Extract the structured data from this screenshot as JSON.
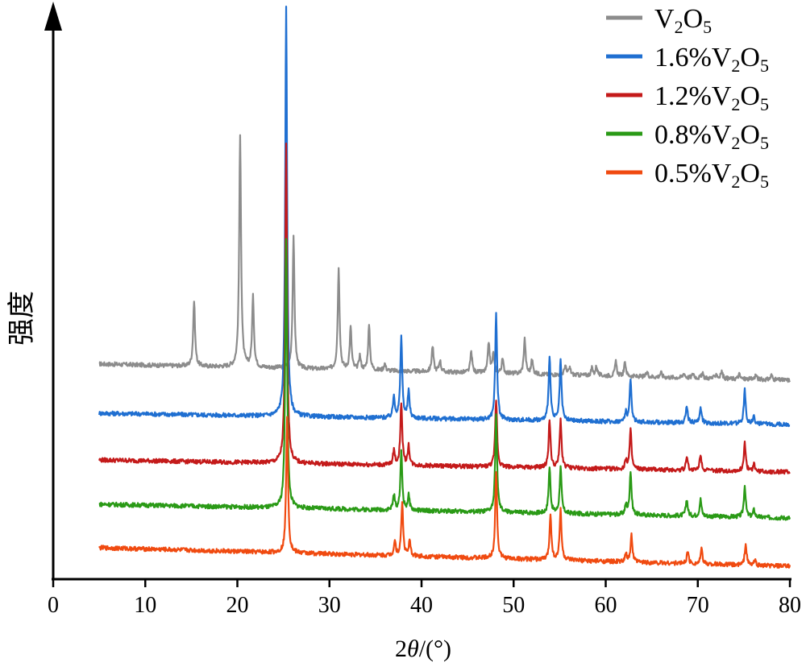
{
  "chart_data": {
    "type": "line",
    "xlabel_prefix": "2",
    "xlabel_italic": "θ",
    "xlabel_suffix": "/(°)",
    "ylabel": "强度",
    "xlim": [
      0,
      80
    ],
    "x_ticks": [
      "0",
      "10",
      "20",
      "30",
      "40",
      "50",
      "60",
      "70",
      "80"
    ],
    "grid": false,
    "legend_position": "top-right",
    "series": [
      {
        "name": "V2O5",
        "legend_parts": [
          "V",
          "2",
          "O",
          "5"
        ],
        "color": "#8c8c8c",
        "x_range": [
          5,
          80
        ],
        "baseline_start": 0.35,
        "baseline_end": 0.0,
        "peaks": [
          [
            15.3,
            2.8
          ],
          [
            20.3,
            9.9
          ],
          [
            21.7,
            3.0
          ],
          [
            26.1,
            5.6
          ],
          [
            31.0,
            4.3
          ],
          [
            32.3,
            1.8
          ],
          [
            33.3,
            0.6
          ],
          [
            34.3,
            1.9
          ],
          [
            36.0,
            0.3
          ],
          [
            41.2,
            1.1
          ],
          [
            42.0,
            0.5
          ],
          [
            45.4,
            0.9
          ],
          [
            47.3,
            1.3
          ],
          [
            47.8,
            0.8
          ],
          [
            48.8,
            0.6
          ],
          [
            51.2,
            1.5
          ],
          [
            52.0,
            0.6
          ],
          [
            55.6,
            0.4
          ],
          [
            56.1,
            0.3
          ],
          [
            58.5,
            0.3
          ],
          [
            59.0,
            0.4
          ],
          [
            61.1,
            0.6
          ],
          [
            62.1,
            0.6
          ],
          [
            64.5,
            0.2
          ],
          [
            66.0,
            0.2
          ],
          [
            68.5,
            0.2
          ],
          [
            69.5,
            0.2
          ],
          [
            70.5,
            0.2
          ],
          [
            72.0,
            0.2
          ],
          [
            72.6,
            0.3
          ],
          [
            74.5,
            0.2
          ],
          [
            76.3,
            0.2
          ],
          [
            78.0,
            0.2
          ]
        ]
      },
      {
        "name": "1.6%V2O5",
        "legend_parts": [
          "1.6%V",
          "2",
          "O",
          "5"
        ],
        "color": "#1f6fd1",
        "x_range": [
          5,
          80
        ],
        "baseline_start": 0.2,
        "baseline_end": 0.0,
        "peaks": [
          [
            25.3,
            17.0
          ],
          [
            37.0,
            0.9
          ],
          [
            37.8,
            3.4
          ],
          [
            38.6,
            1.1
          ],
          [
            48.1,
            4.4
          ],
          [
            53.9,
            2.7
          ],
          [
            55.1,
            2.5
          ],
          [
            62.2,
            0.4
          ],
          [
            62.7,
            1.7
          ],
          [
            68.8,
            0.7
          ],
          [
            70.3,
            0.7
          ],
          [
            75.1,
            1.4
          ],
          [
            76.1,
            0.3
          ]
        ]
      },
      {
        "name": "1.2%V2O5",
        "legend_parts": [
          "1.2%V",
          "2",
          "O",
          "5"
        ],
        "color": "#c41a1a",
        "x_range": [
          5,
          80
        ],
        "baseline_start": 0.2,
        "baseline_end": 0.0,
        "peaks": [
          [
            25.3,
            13.2
          ],
          [
            37.0,
            0.6
          ],
          [
            37.8,
            2.6
          ],
          [
            38.6,
            0.8
          ],
          [
            48.1,
            2.8
          ],
          [
            53.9,
            2.0
          ],
          [
            55.1,
            2.0
          ],
          [
            62.2,
            0.4
          ],
          [
            62.7,
            1.6
          ],
          [
            68.8,
            0.6
          ],
          [
            70.3,
            0.7
          ],
          [
            75.1,
            1.2
          ],
          [
            76.1,
            0.3
          ]
        ]
      },
      {
        "name": "0.8%V2O5",
        "legend_parts": [
          "0.8%V",
          "2",
          "O",
          "5"
        ],
        "color": "#2a9a16",
        "x_range": [
          5,
          80
        ],
        "baseline_start": 0.2,
        "baseline_end": 0.0,
        "peaks": [
          [
            25.3,
            11.2
          ],
          [
            37.0,
            0.6
          ],
          [
            37.8,
            2.4
          ],
          [
            38.6,
            0.6
          ],
          [
            48.1,
            4.0
          ],
          [
            53.9,
            1.9
          ],
          [
            55.1,
            1.9
          ],
          [
            62.2,
            0.4
          ],
          [
            62.7,
            1.8
          ],
          [
            68.8,
            0.7
          ],
          [
            70.3,
            0.7
          ],
          [
            75.1,
            1.3
          ],
          [
            76.1,
            0.3
          ]
        ]
      },
      {
        "name": "0.5%V2O5",
        "legend_parts": [
          "0.5%V",
          "2",
          "O",
          "5"
        ],
        "color": "#f04a10",
        "x_range": [
          5,
          80
        ],
        "baseline_start": 0.4,
        "baseline_end": 0.0,
        "peaks": [
          [
            25.4,
            5.7
          ],
          [
            37.1,
            0.6
          ],
          [
            37.9,
            2.2
          ],
          [
            38.7,
            0.6
          ],
          [
            48.1,
            3.6
          ],
          [
            54.0,
            1.9
          ],
          [
            55.1,
            2.1
          ],
          [
            62.2,
            0.3
          ],
          [
            62.8,
            1.1
          ],
          [
            68.9,
            0.5
          ],
          [
            70.4,
            0.6
          ],
          [
            75.2,
            0.9
          ],
          [
            76.2,
            0.2
          ]
        ]
      }
    ]
  }
}
